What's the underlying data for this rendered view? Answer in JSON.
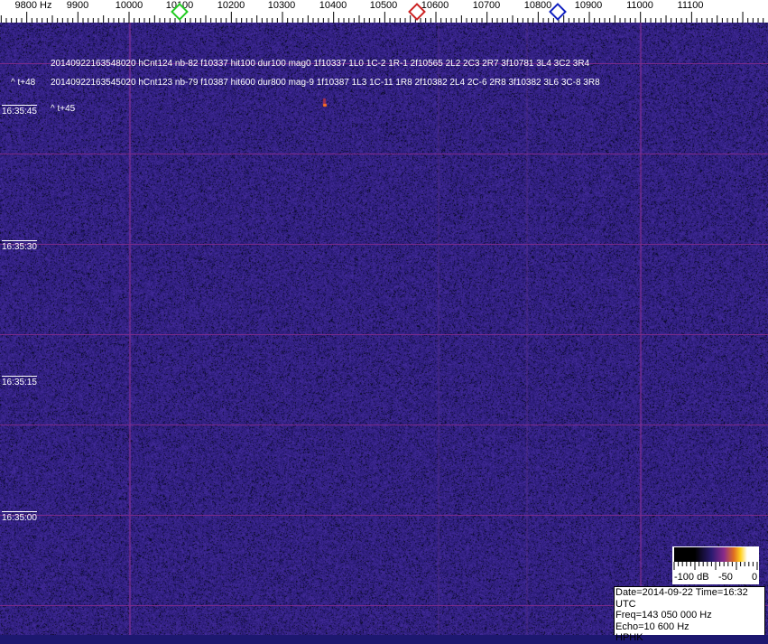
{
  "chart_data": {
    "type": "heatmap",
    "xlabel_unit": "Hz",
    "x_ticks": [
      "9800 Hz",
      "9900",
      "10000",
      "10100",
      "10200",
      "10300",
      "10400",
      "10500",
      "10600",
      "10700",
      "10800",
      "10900",
      "11000",
      "11100"
    ],
    "x_tick_values": [
      9800,
      9900,
      10000,
      10100,
      10200,
      10300,
      10400,
      10500,
      10600,
      10700,
      10800,
      10900,
      11000,
      11100
    ],
    "y_ticks": [
      "16:35:45",
      "16:35:30",
      "16:35:15",
      "16:35:00"
    ],
    "colorbar": {
      "labels": [
        "-100 dB",
        "-50",
        "0"
      ],
      "range": [
        -100,
        0
      ]
    },
    "markers": [
      {
        "color": "#22cc22",
        "freq": 10100
      },
      {
        "color": "#cc2222",
        "freq": 10545
      },
      {
        "color": "#1020c0",
        "freq": 10840
      }
    ]
  },
  "detections": [
    "20140922163548020 hCnt124 nb-82 f10337 hit100 dur100 mag0 1f10337 1L0 1C-2 1R-1 2f10565 2L2 2C3 2R7 3f10781 3L4 3C2 3R4",
    "20140922163545020 hCnt123 nb-79 f10387 hit600 dur800 mag-9 1f10387 1L3 1C-11 1R8 2f10382 2L4 2C-6 2R8 3f10382 3L6 3C-8 3R8"
  ],
  "overlap_label": "^ t+48",
  "t_marker": "^ t+45",
  "info": {
    "date_line": "Date=2014-09-22 Time=16:32 UTC",
    "freq_line": "Freq=143 050 000 Hz",
    "echo_line": "Echo=10 600 Hz",
    "station": "HPHK"
  }
}
